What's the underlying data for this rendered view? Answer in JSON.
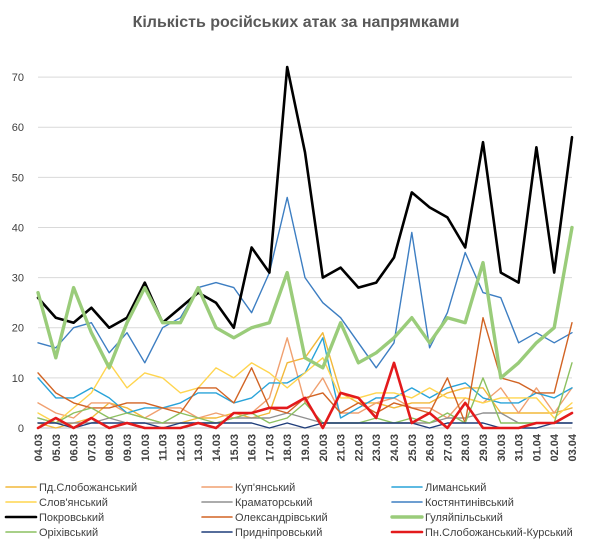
{
  "chart_data": {
    "type": "line",
    "title": "Кількість російських атак за напрямками",
    "x": [
      "04.03",
      "05.03",
      "06.03",
      "07.03",
      "08.03",
      "09.03",
      "10.03",
      "11.03",
      "12.03",
      "13.03",
      "14.03",
      "15.03",
      "16.03",
      "17.03",
      "18.03",
      "19.03",
      "20.03",
      "21.03",
      "22.03",
      "23.03",
      "24.03",
      "25.03",
      "26.03",
      "27.03",
      "28.03",
      "29.03",
      "30.03",
      "31.03",
      "01.04",
      "02.04",
      "03.04"
    ],
    "ylim": [
      0,
      75
    ],
    "yticks": [
      0,
      10,
      20,
      30,
      40,
      50,
      60,
      70
    ],
    "grid": true,
    "legend_position": "bottom",
    "series": [
      {
        "name": "Пд.Слобожанський",
        "color": "#F2B83A",
        "width": 1.4,
        "values": [
          1,
          0,
          1,
          2,
          5,
          4,
          2,
          1,
          1,
          2,
          2,
          3,
          2,
          3,
          13,
          14,
          19,
          7,
          5,
          5,
          4,
          5,
          5,
          7,
          8,
          8,
          3,
          3,
          3,
          3,
          4
        ]
      },
      {
        "name": "Куп'янський",
        "color": "#F0A070",
        "width": 1.4,
        "values": [
          5,
          3,
          2,
          5,
          5,
          3,
          2,
          4,
          4,
          2,
          3,
          2,
          3,
          6,
          18,
          5,
          10,
          3,
          3,
          5,
          6,
          4,
          4,
          2,
          6,
          5,
          8,
          3,
          8,
          3,
          8
        ]
      },
      {
        "name": "Лиманський",
        "color": "#29A3D9",
        "width": 1.4,
        "values": [
          10,
          6,
          6,
          8,
          6,
          3,
          4,
          4,
          5,
          7,
          7,
          5,
          6,
          9,
          9,
          11,
          18,
          2,
          4,
          6,
          6,
          8,
          6,
          8,
          9,
          6,
          5,
          5,
          7,
          6,
          8
        ]
      },
      {
        "name": "Слов'янський",
        "color": "#FFD54F",
        "width": 1.4,
        "values": [
          3,
          1,
          4,
          7,
          13,
          8,
          11,
          10,
          7,
          8,
          12,
          10,
          13,
          11,
          8,
          11,
          14,
          6,
          6,
          7,
          7,
          6,
          8,
          6,
          6,
          5,
          6,
          6,
          6,
          2,
          5
        ]
      },
      {
        "name": "Краматорський",
        "color": "#909090",
        "width": 1.4,
        "values": [
          2,
          1,
          1,
          1,
          2,
          1,
          1,
          1,
          1,
          1,
          1,
          2,
          2,
          2,
          3,
          2,
          1,
          1,
          1,
          1,
          1,
          1,
          1,
          2,
          2,
          3,
          3,
          1,
          1,
          1,
          1
        ]
      },
      {
        "name": "Костянтинівський",
        "color": "#3D7EC2",
        "width": 1.4,
        "values": [
          17,
          16,
          20,
          21,
          15,
          19,
          13,
          20,
          22,
          28,
          29,
          28,
          23,
          31,
          46,
          30,
          25,
          22,
          17,
          12,
          17,
          39,
          16,
          23,
          35,
          27,
          26,
          17,
          19,
          17,
          19
        ]
      },
      {
        "name": "Покровський",
        "color": "#000000",
        "width": 2.6,
        "values": [
          26,
          22,
          21,
          24,
          20,
          22,
          29,
          21,
          24,
          27,
          25,
          20,
          36,
          31,
          72,
          55,
          30,
          32,
          28,
          29,
          34,
          47,
          44,
          42,
          36,
          57,
          31,
          29,
          56,
          31,
          58
        ]
      },
      {
        "name": "Олександрівський",
        "color": "#D26424",
        "width": 1.4,
        "values": [
          11,
          7,
          5,
          4,
          4,
          5,
          5,
          4,
          3,
          8,
          8,
          5,
          12,
          4,
          3,
          6,
          7,
          3,
          5,
          3,
          5,
          4,
          3,
          10,
          1,
          22,
          10,
          9,
          7,
          7,
          21
        ]
      },
      {
        "name": "Гуляйпільський",
        "color": "#9ACC7A",
        "width": 3.4,
        "values": [
          27,
          14,
          28,
          19,
          12,
          21,
          28,
          21,
          21,
          28,
          20,
          18,
          20,
          21,
          31,
          14,
          12,
          21,
          13,
          15,
          18,
          22,
          17,
          22,
          21,
          33,
          10,
          13,
          17,
          20,
          40
        ]
      },
      {
        "name": "Оріхівський",
        "color": "#8CC060",
        "width": 1.4,
        "values": [
          2,
          1,
          3,
          4,
          2,
          3,
          2,
          1,
          3,
          2,
          1,
          2,
          3,
          1,
          2,
          5,
          1,
          1,
          1,
          2,
          1,
          2,
          1,
          3,
          1,
          10,
          1,
          1,
          1,
          1,
          13
        ]
      },
      {
        "name": "Придніпровський",
        "color": "#1F3D7A",
        "width": 1.4,
        "values": [
          1,
          1,
          0,
          1,
          1,
          1,
          1,
          0,
          1,
          1,
          1,
          1,
          1,
          0,
          1,
          0,
          1,
          1,
          1,
          1,
          1,
          1,
          0,
          1,
          1,
          1,
          0,
          0,
          0,
          1,
          1
        ]
      },
      {
        "name": "Пн.Слобожанський-Курський",
        "color": "#E31A1C",
        "width": 2.6,
        "values": [
          0,
          2,
          0,
          2,
          0,
          1,
          0,
          0,
          0,
          1,
          0,
          3,
          3,
          4,
          4,
          6,
          0,
          7,
          6,
          2,
          13,
          1,
          3,
          0,
          5,
          0,
          0,
          0,
          1,
          1,
          3
        ]
      }
    ]
  }
}
